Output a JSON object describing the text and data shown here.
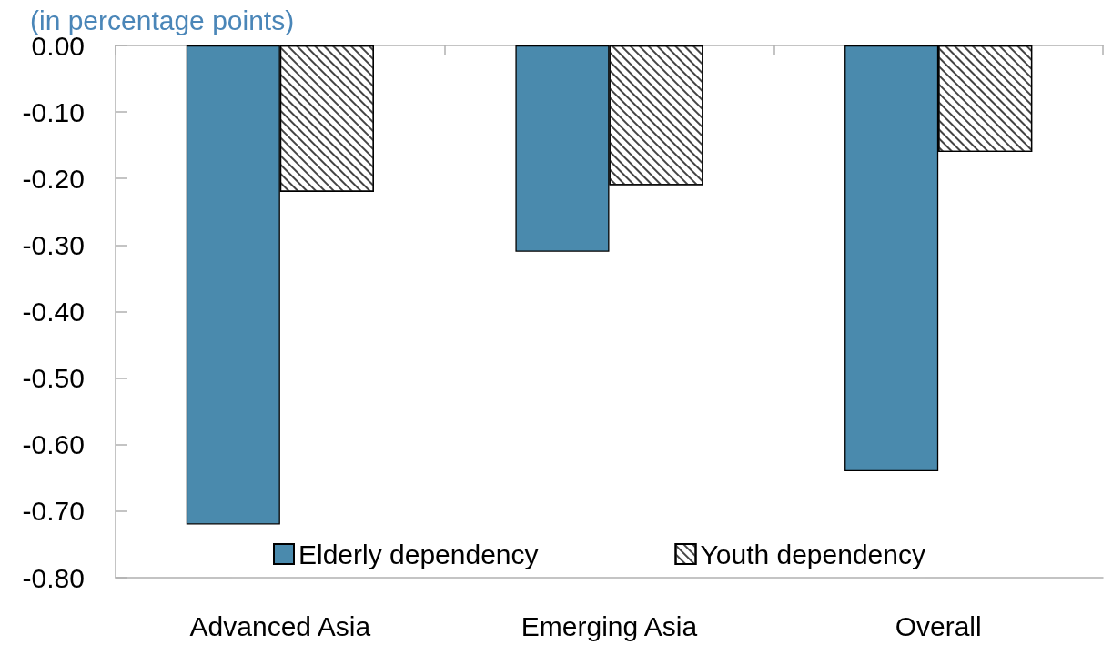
{
  "chart_data": {
    "type": "bar",
    "ylabel": "(in percentage points)",
    "categories": [
      "Advanced Asia",
      "Emerging Asia",
      "Overall"
    ],
    "series": [
      {
        "name": "Elderly dependency",
        "color": "#4a8aad",
        "values": [
          -0.72,
          -0.31,
          -0.64
        ]
      },
      {
        "name": "Youth dependency",
        "color": "#ffffff",
        "values": [
          -0.22,
          -0.21,
          -0.16
        ]
      }
    ],
    "ylim": [
      -0.8,
      0
    ],
    "yticks": [
      {
        "value": -0.8,
        "label": "-0.80"
      },
      {
        "value": -0.7,
        "label": "-0.70"
      },
      {
        "value": -0.6,
        "label": "-0.60"
      },
      {
        "value": -0.5,
        "label": "-0.50"
      },
      {
        "value": -0.4,
        "label": "-0.40"
      },
      {
        "value": -0.3,
        "label": "-0.30"
      },
      {
        "value": -0.2,
        "label": "-0.20"
      },
      {
        "value": -0.1,
        "label": "-0.10"
      },
      {
        "value": 0,
        "label": "0.00"
      }
    ],
    "grid": false,
    "legend": "bottom"
  }
}
